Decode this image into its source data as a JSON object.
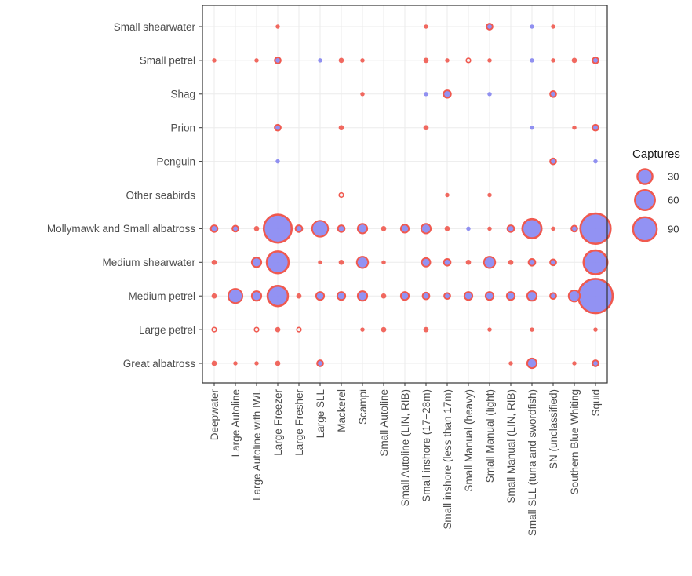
{
  "chart_data": {
    "type": "scatter",
    "subtype": "bubble",
    "title": "",
    "xlabel": "",
    "ylabel": "",
    "x_categories": [
      "Deepwater",
      "Large Autoline",
      "Large Autoline with IWL",
      "Large Freezer",
      "Large Fresher",
      "Large SLL",
      "Mackerel",
      "Scampi",
      "Small Autoline",
      "Small Autoline (LIN, RIB)",
      "Small inshore (17−28m)",
      "Small inshore (less than 17m)",
      "Small Manual (heavy)",
      "Small Manual (light)",
      "Small Manual (LIN, RIB)",
      "Small SLL (tuna and swordfish)",
      "SN (unclassified)",
      "Southern Blue Whiting",
      "Squid"
    ],
    "y_categories": [
      "Great albatross",
      "Large petrel",
      "Medium petrel",
      "Medium shearwater",
      "Mollymawk and Small albatross",
      "Other seabirds",
      "Penguin",
      "Prion",
      "Shag",
      "Small petrel",
      "Small shearwater"
    ],
    "grid": true,
    "legend": {
      "title": "Captures",
      "position": "right",
      "entries": [
        30,
        60,
        90
      ]
    },
    "size_scale": {
      "max_value": 130,
      "max_radius": 22
    },
    "colors": {
      "fill": "#8c8cf2",
      "stroke": "#f0594f",
      "fill_only": "#8a8af0"
    },
    "points": [
      {
        "x": "Large Freezer",
        "y": "Small shearwater",
        "value": 2,
        "style": "stroke"
      },
      {
        "x": "Small inshore (17−28m)",
        "y": "Small shearwater",
        "value": 2,
        "style": "stroke"
      },
      {
        "x": "Small Manual (light)",
        "y": "Small shearwater",
        "value": 4,
        "style": "both"
      },
      {
        "x": "Small SLL (tuna and swordfish)",
        "y": "Small shearwater",
        "value": 2,
        "style": "fill"
      },
      {
        "x": "SN (unclassified)",
        "y": "Small shearwater",
        "value": 2,
        "style": "stroke"
      },
      {
        "x": "Deepwater",
        "y": "Small petrel",
        "value": 2,
        "style": "stroke"
      },
      {
        "x": "Large Autoline with IWL",
        "y": "Small petrel",
        "value": 2,
        "style": "stroke"
      },
      {
        "x": "Large Freezer",
        "y": "Small petrel",
        "value": 4,
        "style": "both"
      },
      {
        "x": "Large SLL",
        "y": "Small petrel",
        "value": 2,
        "style": "fill"
      },
      {
        "x": "Mackerel",
        "y": "Small petrel",
        "value": 3,
        "style": "stroke"
      },
      {
        "x": "Scampi",
        "y": "Small petrel",
        "value": 2,
        "style": "stroke"
      },
      {
        "x": "Small inshore (17−28m)",
        "y": "Small petrel",
        "value": 3,
        "style": "stroke"
      },
      {
        "x": "Small inshore (less than 17m)",
        "y": "Small petrel",
        "value": 2,
        "style": "stroke"
      },
      {
        "x": "Small Manual (heavy)",
        "y": "Small petrel",
        "value": 1,
        "style": "ring"
      },
      {
        "x": "Small Manual (light)",
        "y": "Small petrel",
        "value": 2,
        "style": "stroke"
      },
      {
        "x": "Small SLL (tuna and swordfish)",
        "y": "Small petrel",
        "value": 2,
        "style": "fill"
      },
      {
        "x": "SN (unclassified)",
        "y": "Small petrel",
        "value": 2,
        "style": "stroke"
      },
      {
        "x": "Southern Blue Whiting",
        "y": "Small petrel",
        "value": 3,
        "style": "stroke"
      },
      {
        "x": "Squid",
        "y": "Small petrel",
        "value": 4,
        "style": "both"
      },
      {
        "x": "Scampi",
        "y": "Shag",
        "value": 2,
        "style": "stroke"
      },
      {
        "x": "Small inshore (17−28m)",
        "y": "Shag",
        "value": 2,
        "style": "fill"
      },
      {
        "x": "Small inshore (less than 17m)",
        "y": "Shag",
        "value": 6,
        "style": "both"
      },
      {
        "x": "Small Manual (light)",
        "y": "Shag",
        "value": 2,
        "style": "fill"
      },
      {
        "x": "SN (unclassified)",
        "y": "Shag",
        "value": 4,
        "style": "both"
      },
      {
        "x": "Large Freezer",
        "y": "Prion",
        "value": 4,
        "style": "both"
      },
      {
        "x": "Mackerel",
        "y": "Prion",
        "value": 3,
        "style": "stroke"
      },
      {
        "x": "Small inshore (17−28m)",
        "y": "Prion",
        "value": 3,
        "style": "stroke"
      },
      {
        "x": "Small SLL (tuna and swordfish)",
        "y": "Prion",
        "value": 2,
        "style": "fill"
      },
      {
        "x": "Southern Blue Whiting",
        "y": "Prion",
        "value": 2,
        "style": "stroke"
      },
      {
        "x": "Squid",
        "y": "Prion",
        "value": 4,
        "style": "both"
      },
      {
        "x": "Large Freezer",
        "y": "Penguin",
        "value": 2,
        "style": "fill"
      },
      {
        "x": "SN (unclassified)",
        "y": "Penguin",
        "value": 4,
        "style": "both"
      },
      {
        "x": "Squid",
        "y": "Penguin",
        "value": 2,
        "style": "fill"
      },
      {
        "x": "Mackerel",
        "y": "Other seabirds",
        "value": 1,
        "style": "ring"
      },
      {
        "x": "Small inshore (less than 17m)",
        "y": "Other seabirds",
        "value": 2,
        "style": "stroke"
      },
      {
        "x": "Small Manual (light)",
        "y": "Other seabirds",
        "value": 2,
        "style": "stroke"
      },
      {
        "x": "Deepwater",
        "y": "Mollymawk and Small albatross",
        "value": 5,
        "style": "both"
      },
      {
        "x": "Large Autoline",
        "y": "Mollymawk and Small albatross",
        "value": 4,
        "style": "both"
      },
      {
        "x": "Large Autoline with IWL",
        "y": "Mollymawk and Small albatross",
        "value": 3,
        "style": "stroke"
      },
      {
        "x": "Large Freezer",
        "y": "Mollymawk and Small albatross",
        "value": 85,
        "style": "both"
      },
      {
        "x": "Large Fresher",
        "y": "Mollymawk and Small albatross",
        "value": 5,
        "style": "both"
      },
      {
        "x": "Large SLL",
        "y": "Mollymawk and Small albatross",
        "value": 28,
        "style": "both"
      },
      {
        "x": "Mackerel",
        "y": "Mollymawk and Small albatross",
        "value": 5,
        "style": "both"
      },
      {
        "x": "Scampi",
        "y": "Mollymawk and Small albatross",
        "value": 10,
        "style": "both"
      },
      {
        "x": "Small Autoline",
        "y": "Mollymawk and Small albatross",
        "value": 3,
        "style": "stroke"
      },
      {
        "x": "Small Autoline (LIN, RIB)",
        "y": "Mollymawk and Small albatross",
        "value": 7,
        "style": "both"
      },
      {
        "x": "Small inshore (17−28m)",
        "y": "Mollymawk and Small albatross",
        "value": 10,
        "style": "both"
      },
      {
        "x": "Small inshore (less than 17m)",
        "y": "Mollymawk and Small albatross",
        "value": 3,
        "style": "stroke"
      },
      {
        "x": "Small Manual (heavy)",
        "y": "Mollymawk and Small albatross",
        "value": 2,
        "style": "fill"
      },
      {
        "x": "Small Manual (light)",
        "y": "Mollymawk and Small albatross",
        "value": 2,
        "style": "stroke"
      },
      {
        "x": "Small Manual (LIN, RIB)",
        "y": "Mollymawk and Small albatross",
        "value": 5,
        "style": "both"
      },
      {
        "x": "Small SLL (tuna and swordfish)",
        "y": "Mollymawk and Small albatross",
        "value": 40,
        "style": "both"
      },
      {
        "x": "SN (unclassified)",
        "y": "Mollymawk and Small albatross",
        "value": 2,
        "style": "stroke"
      },
      {
        "x": "Southern Blue Whiting",
        "y": "Mollymawk and Small albatross",
        "value": 4,
        "style": "both"
      },
      {
        "x": "Squid",
        "y": "Mollymawk and Small albatross",
        "value": 100,
        "style": "both"
      },
      {
        "x": "Deepwater",
        "y": "Medium shearwater",
        "value": 3,
        "style": "stroke"
      },
      {
        "x": "Large Autoline with IWL",
        "y": "Medium shearwater",
        "value": 10,
        "style": "both"
      },
      {
        "x": "Large Freezer",
        "y": "Medium shearwater",
        "value": 52,
        "style": "both"
      },
      {
        "x": "Large SLL",
        "y": "Medium shearwater",
        "value": 2,
        "style": "stroke"
      },
      {
        "x": "Mackerel",
        "y": "Medium shearwater",
        "value": 3,
        "style": "stroke"
      },
      {
        "x": "Scampi",
        "y": "Medium shearwater",
        "value": 14,
        "style": "both"
      },
      {
        "x": "Small Autoline",
        "y": "Medium shearwater",
        "value": 2,
        "style": "stroke"
      },
      {
        "x": "Small inshore (17−28m)",
        "y": "Medium shearwater",
        "value": 8,
        "style": "both"
      },
      {
        "x": "Small inshore (less than 17m)",
        "y": "Medium shearwater",
        "value": 5,
        "style": "both"
      },
      {
        "x": "Small Manual (heavy)",
        "y": "Medium shearwater",
        "value": 3,
        "style": "stroke"
      },
      {
        "x": "Small Manual (light)",
        "y": "Medium shearwater",
        "value": 14,
        "style": "both"
      },
      {
        "x": "Small Manual (LIN, RIB)",
        "y": "Medium shearwater",
        "value": 3,
        "style": "stroke"
      },
      {
        "x": "Small SLL (tuna and swordfish)",
        "y": "Medium shearwater",
        "value": 5,
        "style": "both"
      },
      {
        "x": "SN (unclassified)",
        "y": "Medium shearwater",
        "value": 4,
        "style": "both"
      },
      {
        "x": "Squid",
        "y": "Medium shearwater",
        "value": 62,
        "style": "both"
      },
      {
        "x": "Deepwater",
        "y": "Medium petrel",
        "value": 3,
        "style": "stroke"
      },
      {
        "x": "Large Autoline",
        "y": "Medium petrel",
        "value": 22,
        "style": "both"
      },
      {
        "x": "Large Autoline with IWL",
        "y": "Medium petrel",
        "value": 10,
        "style": "both"
      },
      {
        "x": "Large Freezer",
        "y": "Medium petrel",
        "value": 45,
        "style": "both"
      },
      {
        "x": "Large Fresher",
        "y": "Medium petrel",
        "value": 3,
        "style": "stroke"
      },
      {
        "x": "Large SLL",
        "y": "Medium petrel",
        "value": 7,
        "style": "both"
      },
      {
        "x": "Mackerel",
        "y": "Medium petrel",
        "value": 7,
        "style": "both"
      },
      {
        "x": "Scampi",
        "y": "Medium petrel",
        "value": 10,
        "style": "both"
      },
      {
        "x": "Small Autoline",
        "y": "Medium petrel",
        "value": 3,
        "style": "stroke"
      },
      {
        "x": "Small Autoline (LIN, RIB)",
        "y": "Medium petrel",
        "value": 7,
        "style": "both"
      },
      {
        "x": "Small inshore (17−28m)",
        "y": "Medium petrel",
        "value": 5,
        "style": "both"
      },
      {
        "x": "Small inshore (less than 17m)",
        "y": "Medium petrel",
        "value": 4,
        "style": "both"
      },
      {
        "x": "Small Manual (heavy)",
        "y": "Medium petrel",
        "value": 7,
        "style": "both"
      },
      {
        "x": "Small Manual (light)",
        "y": "Medium petrel",
        "value": 7,
        "style": "both"
      },
      {
        "x": "Small Manual (LIN, RIB)",
        "y": "Medium petrel",
        "value": 7,
        "style": "both"
      },
      {
        "x": "Small SLL (tuna and swordfish)",
        "y": "Medium petrel",
        "value": 10,
        "style": "both"
      },
      {
        "x": "SN (unclassified)",
        "y": "Medium petrel",
        "value": 4,
        "style": "both"
      },
      {
        "x": "Southern Blue Whiting",
        "y": "Medium petrel",
        "value": 14,
        "style": "both"
      },
      {
        "x": "Squid",
        "y": "Medium petrel",
        "value": 128,
        "style": "both"
      },
      {
        "x": "Deepwater",
        "y": "Large petrel",
        "value": 1,
        "style": "ring"
      },
      {
        "x": "Large Autoline with IWL",
        "y": "Large petrel",
        "value": 1,
        "style": "ring"
      },
      {
        "x": "Large Freezer",
        "y": "Large petrel",
        "value": 3,
        "style": "stroke"
      },
      {
        "x": "Large Fresher",
        "y": "Large petrel",
        "value": 1,
        "style": "ring"
      },
      {
        "x": "Scampi",
        "y": "Large petrel",
        "value": 2,
        "style": "stroke"
      },
      {
        "x": "Small Autoline",
        "y": "Large petrel",
        "value": 3,
        "style": "stroke"
      },
      {
        "x": "Small inshore (17−28m)",
        "y": "Large petrel",
        "value": 3,
        "style": "stroke"
      },
      {
        "x": "Small Manual (light)",
        "y": "Large petrel",
        "value": 2,
        "style": "stroke"
      },
      {
        "x": "Small SLL (tuna and swordfish)",
        "y": "Large petrel",
        "value": 2,
        "style": "stroke"
      },
      {
        "x": "Squid",
        "y": "Large petrel",
        "value": 2,
        "style": "stroke"
      },
      {
        "x": "Deepwater",
        "y": "Great albatross",
        "value": 3,
        "style": "stroke"
      },
      {
        "x": "Large Autoline",
        "y": "Great albatross",
        "value": 2,
        "style": "stroke"
      },
      {
        "x": "Large Autoline with IWL",
        "y": "Great albatross",
        "value": 2,
        "style": "stroke"
      },
      {
        "x": "Large Freezer",
        "y": "Great albatross",
        "value": 3,
        "style": "stroke"
      },
      {
        "x": "Large SLL",
        "y": "Great albatross",
        "value": 4,
        "style": "both"
      },
      {
        "x": "Small Manual (LIN, RIB)",
        "y": "Great albatross",
        "value": 2,
        "style": "stroke"
      },
      {
        "x": "Small SLL (tuna and swordfish)",
        "y": "Great albatross",
        "value": 10,
        "style": "both"
      },
      {
        "x": "Southern Blue Whiting",
        "y": "Great albatross",
        "value": 2,
        "style": "stroke"
      },
      {
        "x": "Squid",
        "y": "Great albatross",
        "value": 4,
        "style": "both"
      }
    ]
  }
}
